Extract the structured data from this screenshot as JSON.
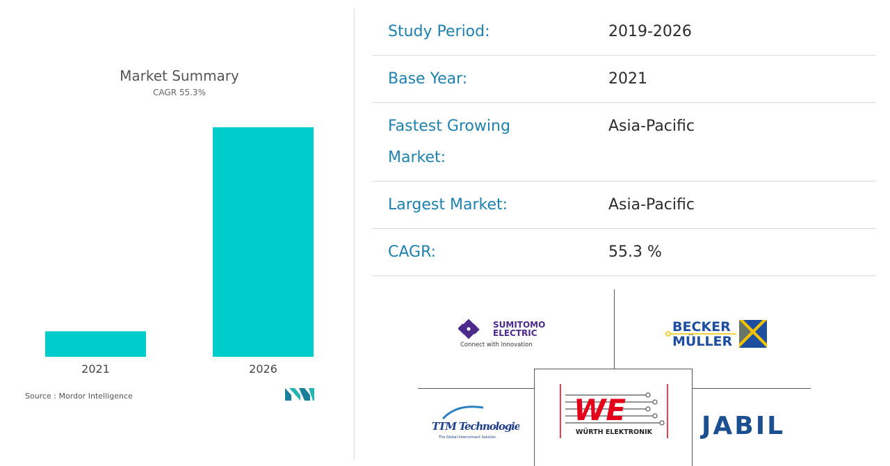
{
  "chart_data": {
    "type": "bar",
    "title": "Market Summary",
    "subtitle": "CAGR 55.3%",
    "categories": [
      "2021",
      "2026"
    ],
    "values": [
      1,
      9.0
    ],
    "color": "#00cccc",
    "ylim": [
      0,
      9.0
    ],
    "show_y_axis": false,
    "grid": false,
    "source": "Source : Mordor Intelligence"
  },
  "summary": {
    "rows": [
      {
        "label": "Study Period:",
        "value": "2019-2026"
      },
      {
        "label": "Base Year:",
        "value": "2021"
      },
      {
        "label_line1": "Fastest Growing",
        "label_line2": "Market:",
        "value": "Asia-Pacific"
      },
      {
        "label": "Largest Market:",
        "value": "Asia-Pacific"
      },
      {
        "label": "CAGR:",
        "value": "55.3 %"
      }
    ]
  },
  "logos": {
    "sumitomo": {
      "line1": "SUMITOMO",
      "line2": "ELECTRIC",
      "tagline": "Connect with Innovation"
    },
    "becker": {
      "line1": "BECKER",
      "line2": "MÜLLER"
    },
    "ttm": {
      "text": "TTM Technologies",
      "tagline": "The Global Interconnect Solution"
    },
    "wurth": {
      "mark": "WE",
      "text": "WÜRTH ELEKTRONIK"
    },
    "jabil": {
      "text": "JABIL"
    }
  },
  "colors": {
    "accent_blue": "#1e80ad",
    "bar": "#00cccc",
    "sumitomo_purple": "#4b2a8c",
    "becker_blue": "#1e4ea0",
    "becker_yellow": "#f2c200",
    "wurth_red": "#e2001a",
    "jabil_blue": "#1c4f8f"
  }
}
